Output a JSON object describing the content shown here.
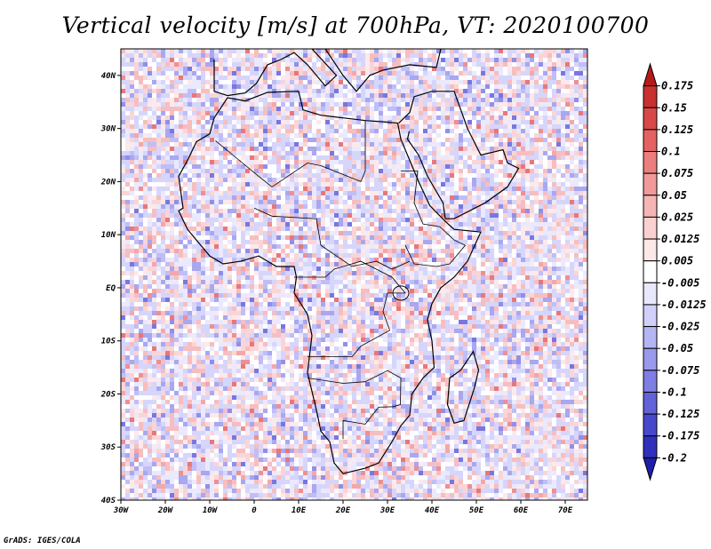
{
  "title": "Vertical velocity [m/s] at 700hPa, VT: 2020100700",
  "credit": "GrADS: IGES/COLA",
  "map": {
    "lon_range": [
      -30,
      75
    ],
    "lat_range": [
      -40,
      45
    ],
    "lon_labels": [
      {
        "lon": -30,
        "text": "30W"
      },
      {
        "lon": -20,
        "text": "20W"
      },
      {
        "lon": -10,
        "text": "10W"
      },
      {
        "lon": 0,
        "text": "0"
      },
      {
        "lon": 10,
        "text": "10E"
      },
      {
        "lon": 20,
        "text": "20E"
      },
      {
        "lon": 30,
        "text": "30E"
      },
      {
        "lon": 40,
        "text": "40E"
      },
      {
        "lon": 50,
        "text": "50E"
      },
      {
        "lon": 60,
        "text": "60E"
      },
      {
        "lon": 70,
        "text": "70E"
      }
    ],
    "lat_labels": [
      {
        "lat": 40,
        "text": "40N"
      },
      {
        "lat": 30,
        "text": "30N"
      },
      {
        "lat": 20,
        "text": "20N"
      },
      {
        "lat": 10,
        "text": "10N"
      },
      {
        "lat": 0,
        "text": "EQ"
      },
      {
        "lat": -10,
        "text": "10S"
      },
      {
        "lat": -20,
        "text": "20S"
      },
      {
        "lat": -30,
        "text": "30S"
      },
      {
        "lat": -40,
        "text": "40S"
      }
    ]
  },
  "colorbar": {
    "levels": [
      "0.175",
      "0.15",
      "0.125",
      "0.1",
      "0.075",
      "0.05",
      "0.025",
      "0.0125",
      "0.005",
      "-0.005",
      "-0.0125",
      "-0.025",
      "-0.05",
      "-0.075",
      "-0.1",
      "-0.125",
      "-0.175",
      "-0.2"
    ],
    "colors": [
      "#b51a1a",
      "#c93030",
      "#d94848",
      "#e46262",
      "#ec7e7e",
      "#f29a9a",
      "#f6b5b5",
      "#fad0d0",
      "#fde8e8",
      "#ffffff",
      "#e8e8fd",
      "#d0d0fa",
      "#b5b5f4",
      "#9a9aec",
      "#7e7ee4",
      "#6262d9",
      "#4848cc",
      "#3030bc",
      "#1e1eaa"
    ]
  }
}
